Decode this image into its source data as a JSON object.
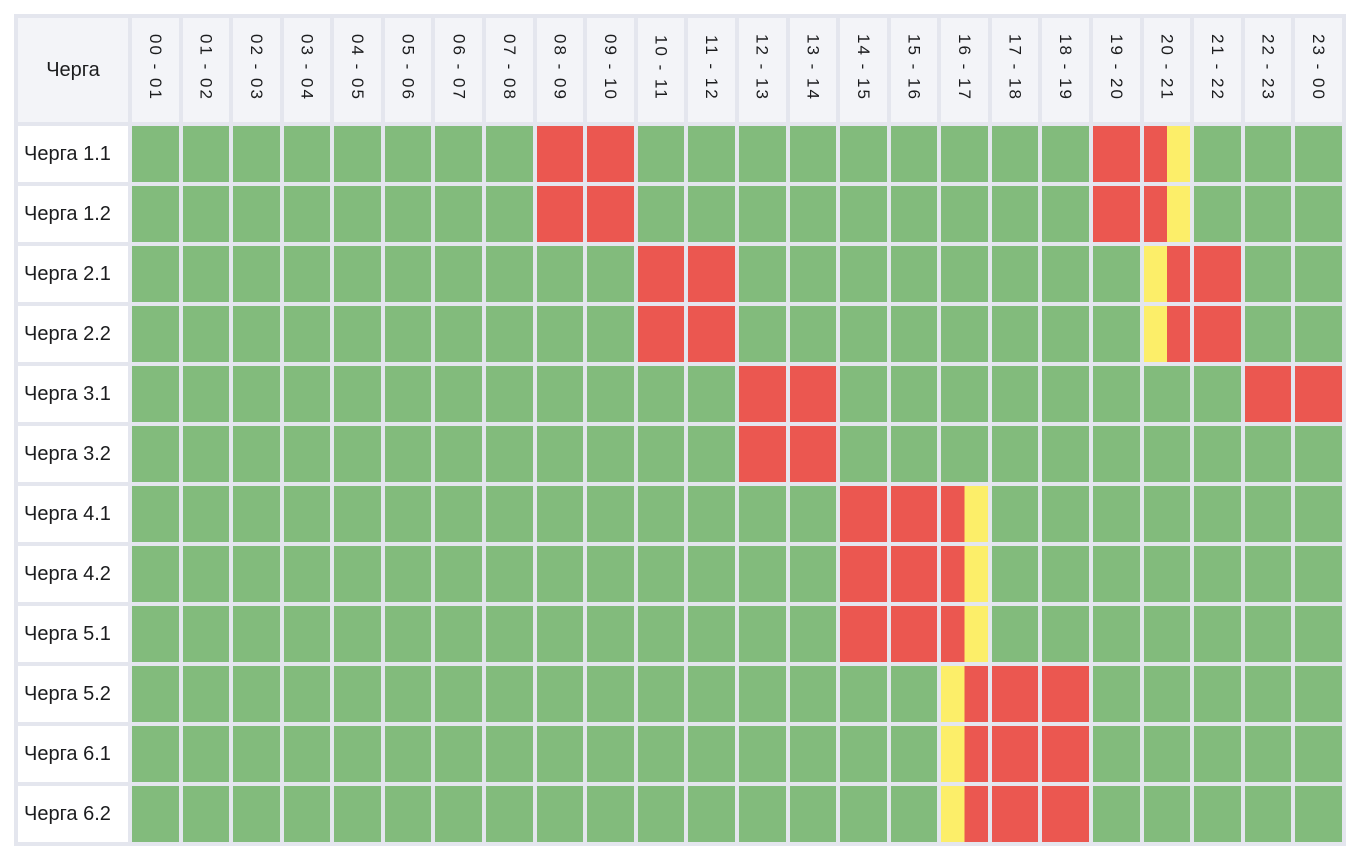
{
  "chart_data": {
    "type": "heatmap",
    "corner_label": "Черга",
    "x_categories": [
      "00 - 01",
      "01 - 02",
      "02 - 03",
      "03 - 04",
      "04 - 05",
      "05 - 06",
      "06 - 07",
      "07 - 08",
      "08 - 09",
      "09 - 10",
      "10 - 11",
      "11 - 12",
      "12 - 13",
      "13 - 14",
      "14 - 15",
      "15 - 16",
      "16 - 17",
      "17 - 18",
      "18 - 19",
      "19 - 20",
      "20 - 21",
      "21 - 22",
      "22 - 23",
      "23 - 00"
    ],
    "rows": [
      {
        "label": "Черга 1.1",
        "cells": [
          "g",
          "g",
          "g",
          "g",
          "g",
          "g",
          "g",
          "g",
          "r",
          "r",
          "g",
          "g",
          "g",
          "g",
          "g",
          "g",
          "g",
          "g",
          "g",
          "r",
          "r/y",
          "g",
          "g",
          "g"
        ]
      },
      {
        "label": "Черга 1.2",
        "cells": [
          "g",
          "g",
          "g",
          "g",
          "g",
          "g",
          "g",
          "g",
          "r",
          "r",
          "g",
          "g",
          "g",
          "g",
          "g",
          "g",
          "g",
          "g",
          "g",
          "r",
          "r/y",
          "g",
          "g",
          "g"
        ]
      },
      {
        "label": "Черга 2.1",
        "cells": [
          "g",
          "g",
          "g",
          "g",
          "g",
          "g",
          "g",
          "g",
          "g",
          "g",
          "r",
          "r",
          "g",
          "g",
          "g",
          "g",
          "g",
          "g",
          "g",
          "g",
          "y/r",
          "r",
          "g",
          "g"
        ]
      },
      {
        "label": "Черга 2.2",
        "cells": [
          "g",
          "g",
          "g",
          "g",
          "g",
          "g",
          "g",
          "g",
          "g",
          "g",
          "r",
          "r",
          "g",
          "g",
          "g",
          "g",
          "g",
          "g",
          "g",
          "g",
          "y/r",
          "r",
          "g",
          "g"
        ]
      },
      {
        "label": "Черга 3.1",
        "cells": [
          "g",
          "g",
          "g",
          "g",
          "g",
          "g",
          "g",
          "g",
          "g",
          "g",
          "g",
          "g",
          "r",
          "r",
          "g",
          "g",
          "g",
          "g",
          "g",
          "g",
          "g",
          "g",
          "r",
          "r"
        ]
      },
      {
        "label": "Черга 3.2",
        "cells": [
          "g",
          "g",
          "g",
          "g",
          "g",
          "g",
          "g",
          "g",
          "g",
          "g",
          "g",
          "g",
          "r",
          "r",
          "g",
          "g",
          "g",
          "g",
          "g",
          "g",
          "g",
          "g",
          "g",
          "g"
        ]
      },
      {
        "label": "Черга 4.1",
        "cells": [
          "g",
          "g",
          "g",
          "g",
          "g",
          "g",
          "g",
          "g",
          "g",
          "g",
          "g",
          "g",
          "g",
          "g",
          "r",
          "r",
          "r/y",
          "g",
          "g",
          "g",
          "g",
          "g",
          "g",
          "g"
        ]
      },
      {
        "label": "Черга 4.2",
        "cells": [
          "g",
          "g",
          "g",
          "g",
          "g",
          "g",
          "g",
          "g",
          "g",
          "g",
          "g",
          "g",
          "g",
          "g",
          "r",
          "r",
          "r/y",
          "g",
          "g",
          "g",
          "g",
          "g",
          "g",
          "g"
        ]
      },
      {
        "label": "Черга 5.1",
        "cells": [
          "g",
          "g",
          "g",
          "g",
          "g",
          "g",
          "g",
          "g",
          "g",
          "g",
          "g",
          "g",
          "g",
          "g",
          "r",
          "r",
          "r/y",
          "g",
          "g",
          "g",
          "g",
          "g",
          "g",
          "g"
        ]
      },
      {
        "label": "Черга 5.2",
        "cells": [
          "g",
          "g",
          "g",
          "g",
          "g",
          "g",
          "g",
          "g",
          "g",
          "g",
          "g",
          "g",
          "g",
          "g",
          "g",
          "g",
          "y/r",
          "r",
          "r",
          "g",
          "g",
          "g",
          "g",
          "g"
        ]
      },
      {
        "label": "Черга 6.1",
        "cells": [
          "g",
          "g",
          "g",
          "g",
          "g",
          "g",
          "g",
          "g",
          "g",
          "g",
          "g",
          "g",
          "g",
          "g",
          "g",
          "g",
          "y/r",
          "r",
          "r",
          "g",
          "g",
          "g",
          "g",
          "g"
        ]
      },
      {
        "label": "Черга 6.2",
        "cells": [
          "g",
          "g",
          "g",
          "g",
          "g",
          "g",
          "g",
          "g",
          "g",
          "g",
          "g",
          "g",
          "g",
          "g",
          "g",
          "g",
          "y/r",
          "r",
          "r",
          "g",
          "g",
          "g",
          "g",
          "g"
        ]
      }
    ],
    "state_names": {
      "g": "power-on",
      "r": "power-off",
      "y": "possible-outage",
      "r/y": "power-off-then-possible",
      "y/r": "possible-then-power-off"
    },
    "state_colors": {
      "g": "#82BB7C",
      "r": "#EB5750",
      "y": "#FCEE69"
    },
    "legend_position": "none",
    "grid": true
  },
  "theme": {
    "page_bg": "#FFFFFF",
    "gap_color": "#E4E6EE",
    "header_bg": "#F3F4F8",
    "label_bg": "#FFFFFF",
    "text_color": "#1B1C1E"
  }
}
